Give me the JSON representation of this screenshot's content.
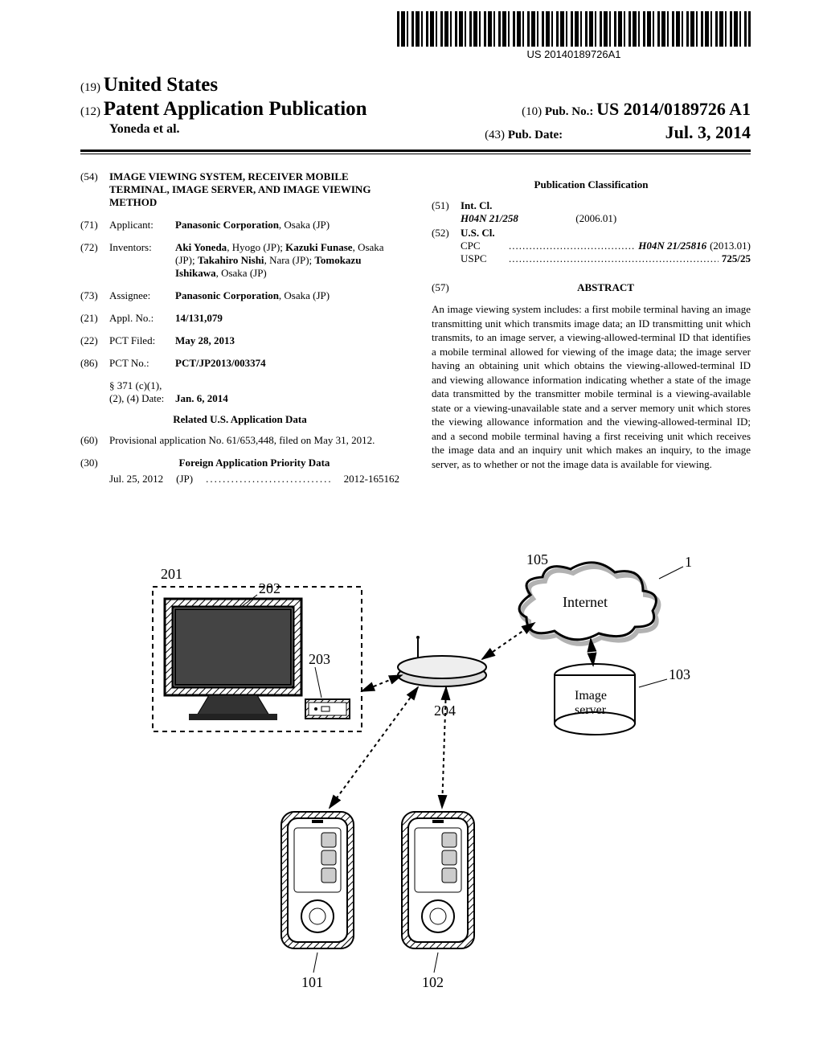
{
  "barcode_text": "US 20140189726A1",
  "header": {
    "country_code": "(19)",
    "country": "United States",
    "doc_kind_code": "(12)",
    "doc_kind": "Patent Application Publication",
    "inventor_short": "Yoneda et al.",
    "pubno_code": "(10)",
    "pubno_label": "Pub. No.:",
    "pubno": "US 2014/0189726 A1",
    "pubdate_code": "(43)",
    "pubdate_label": "Pub. Date:",
    "pubdate": "Jul. 3, 2014"
  },
  "left_column": {
    "title_code": "(54)",
    "title": "IMAGE VIEWING SYSTEM, RECEIVER MOBILE TERMINAL, IMAGE SERVER, AND IMAGE VIEWING METHOD",
    "applicant_code": "(71)",
    "applicant_label": "Applicant:",
    "applicant_value": "Panasonic Corporation, Osaka (JP)",
    "applicant_bold": "Panasonic Corporation",
    "applicant_rest": ", Osaka (JP)",
    "inventors_code": "(72)",
    "inventors_label": "Inventors:",
    "inventors_html": "Aki Yoneda|, Hyogo (JP); |Kazuki Funase|, Osaka (JP); |Takahiro Nishi|, Nara (JP); |Tomokazu Ishikawa|, Osaka (JP)",
    "assignee_code": "(73)",
    "assignee_label": "Assignee:",
    "assignee_bold": "Panasonic Corporation",
    "assignee_rest": ", Osaka (JP)",
    "applno_code": "(21)",
    "applno_label": "Appl. No.:",
    "applno": "14/131,079",
    "pctfiled_code": "(22)",
    "pctfiled_label": "PCT Filed:",
    "pctfiled": "May 28, 2013",
    "pctno_code": "(86)",
    "pctno_label": "PCT No.:",
    "pctno": "PCT/JP2013/003374",
    "s371_label": "§ 371 (c)(1),\n(2), (4) Date:",
    "s371_date": "Jan. 6, 2014",
    "related_heading": "Related U.S. Application Data",
    "provisional_code": "(60)",
    "provisional_text": "Provisional application No. 61/653,448, filed on May 31, 2012.",
    "foreign_code": "(30)",
    "foreign_heading": "Foreign Application Priority Data",
    "foreign_date": "Jul. 25, 2012",
    "foreign_country": "(JP)",
    "foreign_number": "2012-165162"
  },
  "right_column": {
    "classif_heading": "Publication Classification",
    "intcl_code": "(51)",
    "intcl_label": "Int. Cl.",
    "intcl_class": "H04N 21/258",
    "intcl_version": "(2006.01)",
    "uscl_code": "(52)",
    "uscl_label": "U.S. Cl.",
    "cpc_label": "CPC",
    "cpc_value": "H04N 21/25816 (2013.01)",
    "cpc_bold": "H04N 21/25816",
    "cpc_rest": " (2013.01)",
    "uspc_label": "USPC",
    "uspc_value": "725/25",
    "abstract_code": "(57)",
    "abstract_heading": "ABSTRACT",
    "abstract_text": "An image viewing system includes: a first mobile terminal having an image transmitting unit which transmits image data; an ID transmitting unit which transmits, to an image server, a viewing-allowed-terminal ID that identifies a mobile terminal allowed for viewing of the image data; the image server having an obtaining unit which obtains the viewing-allowed-terminal ID and viewing allowance information indicating whether a state of the image data transmitted by the transmitter mobile terminal is a viewing-available state or a viewing-unavailable state and a server memory unit which stores the viewing allowance information and the viewing-allowed-terminal ID; and a second mobile terminal having a first receiving unit which receives the image data and an inquiry unit which makes an inquiry, to the image server, as to whether or not the image data is available for viewing."
  },
  "figure": {
    "labels": {
      "tv_group": "201",
      "tv": "202",
      "stb": "203",
      "router": "204",
      "internet": "Internet",
      "cloud": "105",
      "system": "1",
      "server_num": "103",
      "server_label": "Image\nserver",
      "phone1": "101",
      "phone2": "102"
    },
    "colors": {
      "stroke": "#000000",
      "fill_dark": "#4a4a4a",
      "fill_light": "#d0d0d0",
      "bg": "#ffffff"
    }
  }
}
